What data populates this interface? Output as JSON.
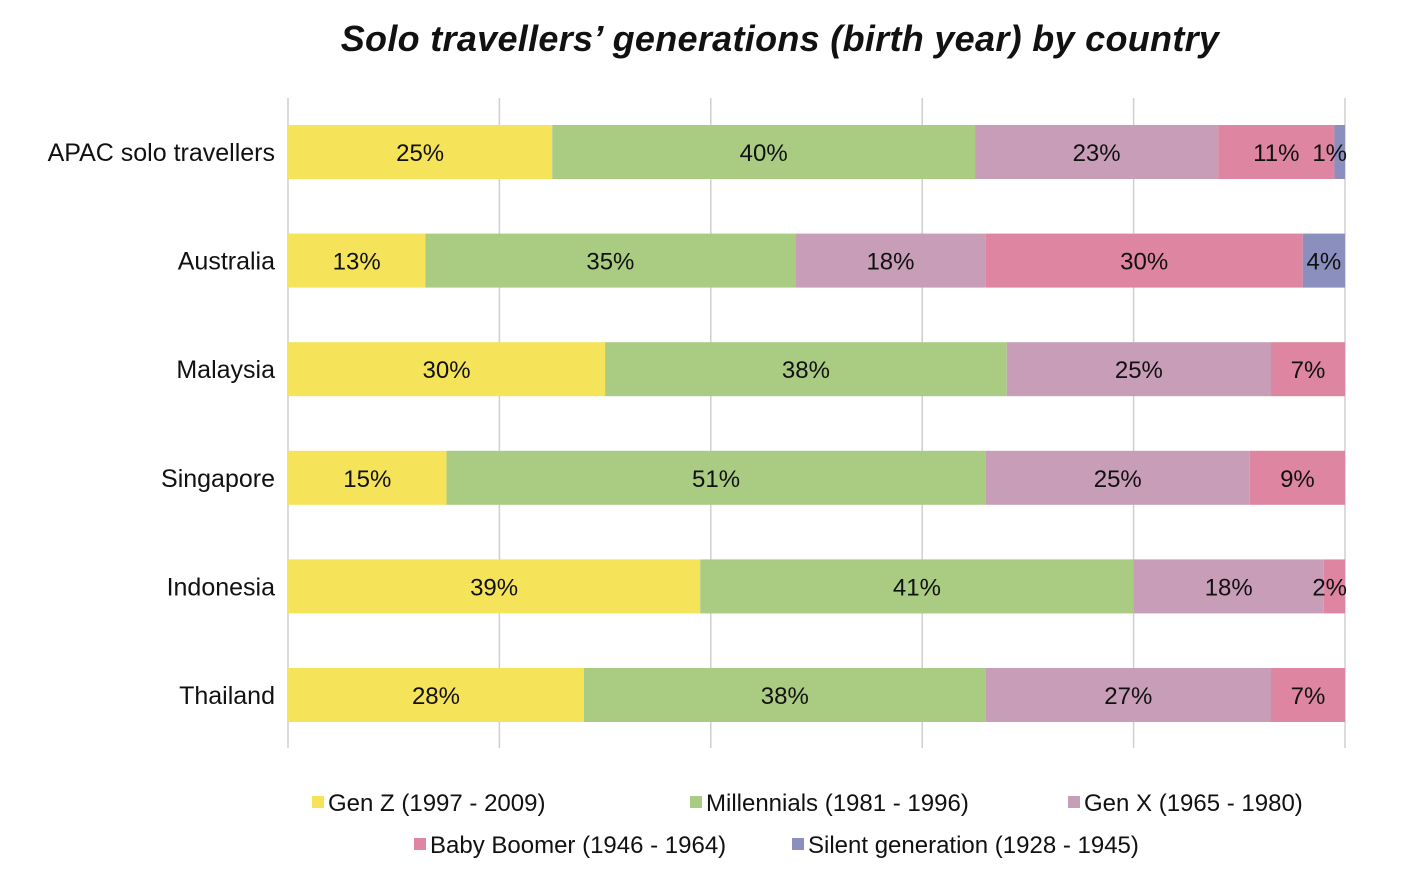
{
  "chart_data": {
    "type": "bar",
    "orientation": "horizontal",
    "stacked": true,
    "title": "Solo travellers’ generations (birth year) by country",
    "xlabel": "",
    "ylabel": "",
    "xlim": [
      0,
      100
    ],
    "grid": true,
    "legend_position": "bottom",
    "categories": [
      "APAC solo travellers",
      "Australia",
      "Malaysia",
      "Singapore",
      "Indonesia",
      "Thailand"
    ],
    "series": [
      {
        "name": "Gen Z (1997 - 2009)",
        "color": "#f5e35a",
        "values": [
          25,
          13,
          30,
          15,
          39,
          28
        ],
        "labels": [
          "25%",
          "13%",
          "30%",
          "15%",
          "39%",
          "28%"
        ]
      },
      {
        "name": "Millennials (1981 - 1996)",
        "color": "#a9cc82",
        "values": [
          40,
          35,
          38,
          51,
          41,
          38
        ],
        "labels": [
          "40%",
          "35%",
          "38%",
          "51%",
          "41%",
          "38%"
        ]
      },
      {
        "name": "Gen X (1965 - 1980)",
        "color": "#c89db8",
        "values": [
          23,
          18,
          25,
          25,
          18,
          27
        ],
        "labels": [
          "23%",
          "18%",
          "25%",
          "25%",
          "18%",
          "27%"
        ]
      },
      {
        "name": "Baby Boomer (1946 - 1964)",
        "color": "#de86a1",
        "values": [
          11,
          30,
          7,
          9,
          2,
          7
        ],
        "labels": [
          "11%",
          "30%",
          "7%",
          "9%",
          "2%",
          "7%"
        ]
      },
      {
        "name": "Silent generation (1928 - 1945)",
        "color": "#8a8fbd",
        "values": [
          1,
          4,
          0,
          0,
          0,
          0
        ],
        "labels": [
          "1%",
          "4%",
          "",
          "",
          "",
          ""
        ]
      }
    ]
  }
}
